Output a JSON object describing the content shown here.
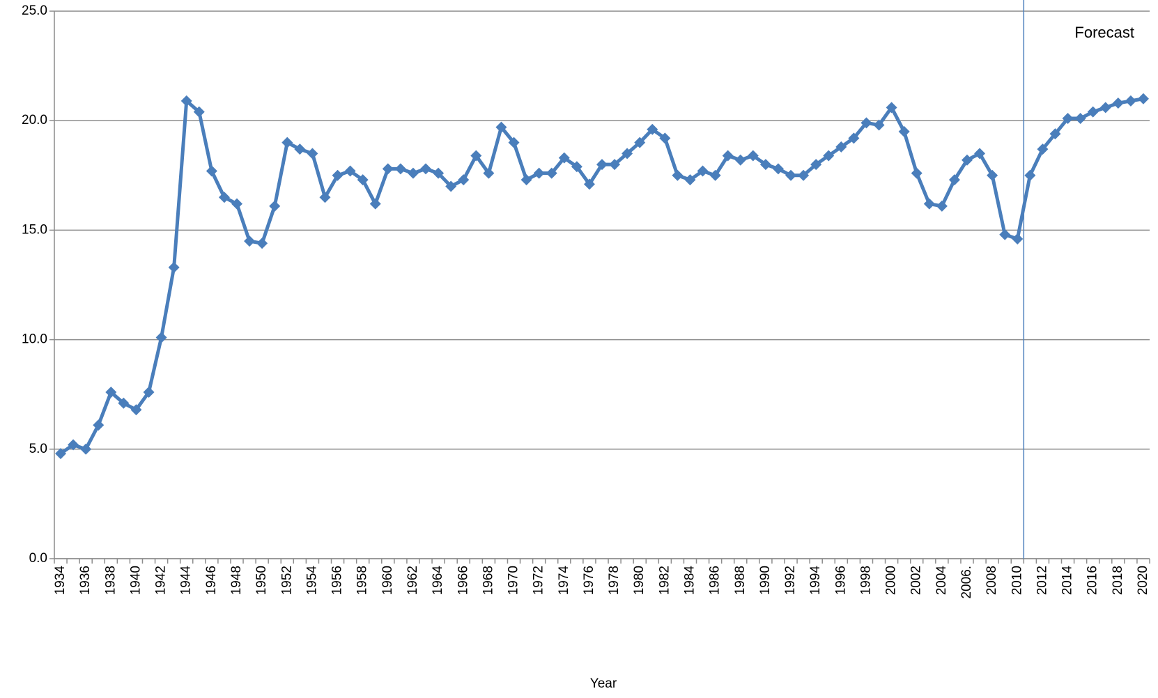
{
  "chart_data": {
    "type": "line",
    "x_label": "Year",
    "annotation": "Forecast",
    "categories": [
      "1934",
      null,
      "1936",
      null,
      "1938",
      null,
      "1940",
      null,
      "1942",
      null,
      "1944",
      null,
      "1946",
      null,
      "1948",
      null,
      "1950",
      null,
      "1952",
      null,
      "1954",
      null,
      "1956",
      null,
      "1958",
      null,
      "1960",
      null,
      "1962",
      null,
      "1964",
      null,
      "1966",
      null,
      "1968",
      null,
      "1970",
      null,
      "1972",
      null,
      "1974",
      null,
      "1976",
      null,
      "1978",
      null,
      "1980",
      null,
      "1982",
      null,
      "1984",
      null,
      "1986",
      null,
      "1988",
      null,
      "1990",
      null,
      "1992",
      null,
      "1994",
      null,
      "1996",
      null,
      "1998",
      null,
      "2000",
      null,
      "2002",
      null,
      "2004",
      null,
      "2006.",
      null,
      "2008",
      null,
      "2010",
      null,
      "2012",
      null,
      "2014",
      null,
      "2016",
      null,
      "2018",
      null,
      "2020"
    ],
    "values": [
      4.8,
      5.2,
      5.0,
      6.1,
      7.6,
      7.1,
      6.8,
      7.6,
      10.1,
      13.3,
      20.9,
      20.4,
      17.7,
      16.5,
      16.2,
      14.5,
      14.4,
      16.1,
      19.0,
      18.7,
      18.5,
      16.5,
      17.5,
      17.7,
      17.3,
      16.2,
      17.8,
      17.8,
      17.6,
      17.8,
      17.6,
      17.0,
      17.3,
      18.4,
      17.6,
      19.7,
      19.0,
      17.3,
      17.6,
      17.6,
      18.3,
      17.9,
      17.1,
      18.0,
      18.0,
      18.5,
      19.0,
      19.6,
      19.2,
      17.5,
      17.3,
      17.7,
      17.5,
      18.4,
      18.2,
      18.4,
      18.0,
      17.8,
      17.5,
      17.5,
      18.0,
      18.4,
      18.8,
      19.2,
      19.9,
      19.8,
      20.6,
      19.5,
      17.6,
      16.2,
      16.1,
      17.3,
      18.2,
      18.5,
      17.5,
      14.8,
      14.6,
      17.5,
      18.7,
      19.4,
      20.1,
      20.1,
      20.4,
      20.6,
      20.8,
      20.9,
      21.0
    ],
    "color": "#4a7ebb",
    "ylim": [
      0,
      25
    ],
    "yticks": [
      {
        "value": 0,
        "label": "0.0"
      },
      {
        "value": 5,
        "label": "5.0"
      },
      {
        "value": 10,
        "label": "10.0"
      },
      {
        "value": 15,
        "label": "15.0"
      },
      {
        "value": 20,
        "label": "20.0"
      },
      {
        "value": 25,
        "label": "25.0"
      }
    ],
    "grid": true
  }
}
